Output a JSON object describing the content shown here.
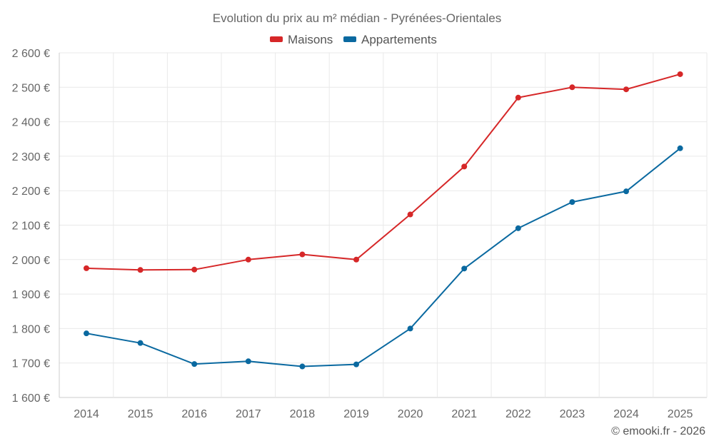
{
  "chart_data": {
    "type": "line",
    "title": "Evolution du prix au m² médian - Pyrénées-Orientales",
    "categories": [
      "2014",
      "2015",
      "2016",
      "2017",
      "2018",
      "2019",
      "2020",
      "2021",
      "2022",
      "2023",
      "2024",
      "2025"
    ],
    "series": [
      {
        "name": "Maisons",
        "color": "#d62728",
        "values": [
          1975,
          1970,
          1971,
          2000,
          2015,
          2000,
          2131,
          2270,
          2470,
          2500,
          2494,
          2538
        ]
      },
      {
        "name": "Appartements",
        "color": "#0a69a0",
        "values": [
          1786,
          1758,
          1697,
          1705,
          1690,
          1696,
          1800,
          1974,
          2091,
          2167,
          2198,
          2323
        ]
      }
    ],
    "ylim": [
      1600,
      2600
    ],
    "yticks": [
      1600,
      1700,
      1800,
      1900,
      2000,
      2100,
      2200,
      2300,
      2400,
      2500,
      2600
    ],
    "ytick_labels": [
      "1 600 €",
      "1 700 €",
      "1 800 €",
      "1 900 €",
      "2 000 €",
      "2 100 €",
      "2 200 €",
      "2 300 €",
      "2 400 €",
      "2 500 €",
      "2 600 €"
    ],
    "xlabel": "",
    "ylabel": "",
    "grid": true,
    "legend_position": "top-center"
  },
  "credit": "© emooki.fr - 2026"
}
